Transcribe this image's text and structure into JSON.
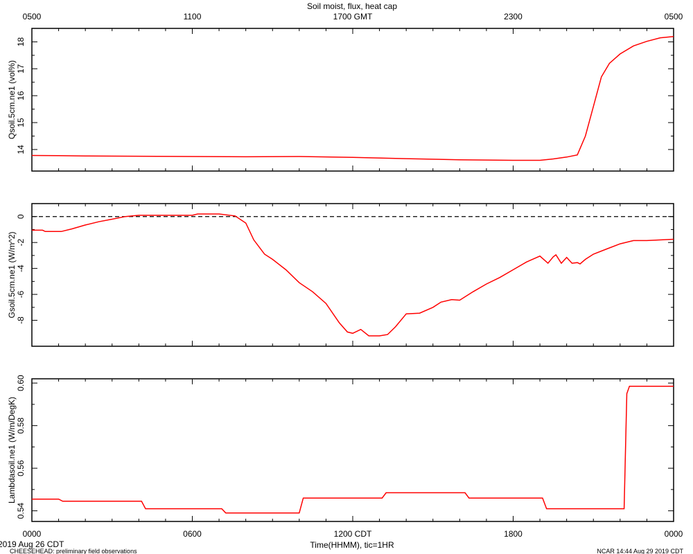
{
  "figure": {
    "title": "Soil moist, flux, heat cap",
    "top_axis_ticks": [
      "0500",
      "1100",
      "1700 GMT",
      "2300",
      "0500"
    ],
    "bottom_axis_ticks": [
      "0000",
      "0600",
      "1200 CDT",
      "1800",
      "0000"
    ],
    "bottom_axis_title": "Time(HHMM), tic=1HR",
    "date_label": "2019 Aug 26 CDT",
    "footer_left": "CHEESEHEAD: preliminary field observations",
    "footer_right": "NCAR 14:44 Aug 29 2019 CDT",
    "line_color": "#ff0000",
    "zero_line_style": "dashed"
  },
  "chart_data": [
    {
      "type": "line",
      "ylabel": "Qsoil.5cm.ne1 (vol%)",
      "x_unit": "hours CDT from 2019 Aug 26 0000",
      "xlim": [
        0,
        24
      ],
      "ylim": [
        13.2,
        18.5
      ],
      "yticks": [
        14,
        15,
        16,
        17,
        18
      ],
      "series": [
        {
          "x": [
            0,
            1,
            2,
            4,
            6,
            8,
            10,
            12,
            14,
            16,
            18,
            19,
            19.5,
            20,
            20.4,
            20.7,
            21,
            21.3,
            21.6,
            22,
            22.5,
            23,
            23.5,
            24
          ],
          "y": [
            13.78,
            13.77,
            13.76,
            13.75,
            13.74,
            13.73,
            13.74,
            13.71,
            13.66,
            13.62,
            13.6,
            13.6,
            13.65,
            13.72,
            13.8,
            14.5,
            15.6,
            16.7,
            17.2,
            17.55,
            17.85,
            18.02,
            18.15,
            18.2
          ]
        }
      ]
    },
    {
      "type": "line",
      "ylabel": "Gsoil.5cm.ne1 (W/m^2)",
      "x_unit": "hours CDT from 2019 Aug 26 0000",
      "xlim": [
        0,
        24
      ],
      "ylim": [
        -10,
        1
      ],
      "yticks": [
        0,
        -2,
        -4,
        -6,
        -8
      ],
      "reference_line": 0,
      "series": [
        {
          "x": [
            0,
            0.4,
            0.5,
            1.1,
            1.5,
            2,
            2.5,
            3,
            3.5,
            4,
            5,
            6,
            6.2,
            7,
            7.6,
            8,
            8.3,
            8.7,
            9,
            9.5,
            10,
            10.5,
            11,
            11.5,
            11.8,
            12,
            12.3,
            12.6,
            13,
            13.3,
            13.6,
            14,
            14.5,
            15,
            15.3,
            15.7,
            16,
            16.5,
            17,
            17.5,
            18,
            18.5,
            19,
            19.3,
            19.5,
            19.6,
            19.8,
            20,
            20.2,
            20.4,
            20.5,
            20.7,
            21,
            21.5,
            22,
            22.5,
            23,
            24
          ],
          "y": [
            -1.05,
            -1.05,
            -1.15,
            -1.15,
            -0.95,
            -0.65,
            -0.4,
            -0.2,
            0,
            0.1,
            0.1,
            0.1,
            0.2,
            0.2,
            0.05,
            -0.5,
            -1.8,
            -2.9,
            -3.3,
            -4.1,
            -5.1,
            -5.8,
            -6.7,
            -8.2,
            -8.9,
            -9.0,
            -8.7,
            -9.2,
            -9.2,
            -9.1,
            -8.5,
            -7.5,
            -7.45,
            -7.0,
            -6.6,
            -6.4,
            -6.45,
            -5.8,
            -5.2,
            -4.7,
            -4.1,
            -3.5,
            -3.05,
            -3.6,
            -3.1,
            -2.95,
            -3.6,
            -3.15,
            -3.6,
            -3.55,
            -3.65,
            -3.3,
            -2.9,
            -2.5,
            -2.1,
            -1.85,
            -1.85,
            -1.75
          ]
        }
      ]
    },
    {
      "type": "line",
      "ylabel": "Lambdasoil.ne1 (W/m/DegK)",
      "x_unit": "hours CDT from 2019 Aug 26 0000",
      "xlim": [
        0,
        24
      ],
      "ylim": [
        0.535,
        0.602
      ],
      "yticks": [
        0.54,
        0.56,
        0.58,
        0.6
      ],
      "ytick_labels": [
        "0.54",
        "0.56",
        "0.58",
        "0.60"
      ],
      "series": [
        {
          "x": [
            0,
            1,
            1.15,
            4.1,
            4.25,
            7.1,
            7.25,
            10,
            10.15,
            13.1,
            13.25,
            16.2,
            16.35,
            19.1,
            19.25,
            22.15,
            22.25,
            22.35,
            24
          ],
          "y": [
            0.5455,
            0.5455,
            0.5445,
            0.5445,
            0.541,
            0.541,
            0.539,
            0.539,
            0.546,
            0.546,
            0.5485,
            0.5485,
            0.546,
            0.546,
            0.541,
            0.541,
            0.595,
            0.5985,
            0.5985
          ]
        }
      ]
    }
  ]
}
